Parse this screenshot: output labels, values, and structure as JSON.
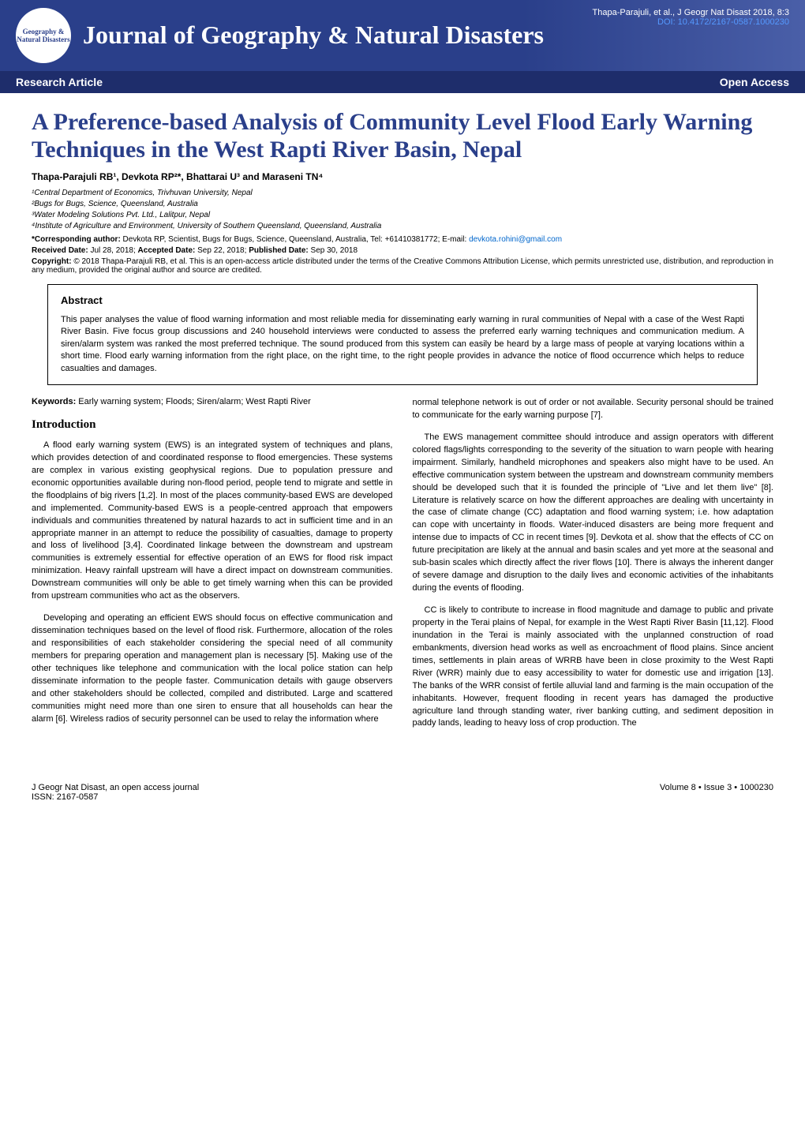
{
  "header": {
    "journal_name": "Journal of Geography & Natural Disasters",
    "citation": "Thapa-Parajuli, et al., J Geogr Nat Disast 2018, 8:3",
    "doi": "DOI: 10.4172/2167-0587.1000230",
    "issn": "ISSN: 2167-0587",
    "logo_text": "Geography & Natural Disasters"
  },
  "article_type_bar": {
    "left": "Research Article",
    "right": "Open Access"
  },
  "article": {
    "title": "A Preference-based Analysis of Community Level Flood Early Warning Techniques in the West Rapti River Basin, Nepal",
    "authors": "Thapa-Parajuli RB¹, Devkota RP²*, Bhattarai U³ and Maraseni TN⁴",
    "affiliations": [
      "¹Central Department of Economics, Trivhuvan University, Nepal",
      "²Bugs for Bugs, Science, Queensland, Australia",
      "³Water Modeling Solutions Pvt. Ltd., Lalitpur, Nepal",
      "⁴Institute of Agriculture and Environment, University of Southern Queensland, Queensland, Australia"
    ],
    "corresponding_label": "*Corresponding author:",
    "corresponding_text": " Devkota RP, Scientist, Bugs for Bugs, Science, Queensland, Australia, Tel: +61410381772; E-mail: ",
    "corresponding_email": "devkota.rohini@gmail.com",
    "dates_received_label": "Received Date:",
    "dates_received": " Jul 28, 2018; ",
    "dates_accepted_label": "Accepted Date:",
    "dates_accepted": " Sep 22, 2018; ",
    "dates_published_label": "Published Date:",
    "dates_published": " Sep 30, 2018",
    "copyright_label": "Copyright:",
    "copyright_text": " © 2018 Thapa-Parajuli RB, et al. This is an open-access article distributed under the terms of the Creative Commons Attribution License, which permits unrestricted use, distribution, and reproduction in any medium, provided the original author and source are credited."
  },
  "abstract": {
    "heading": "Abstract",
    "text": "This paper analyses the value of flood warning information and most reliable media for disseminating early warning in rural communities of Nepal with a case of the West Rapti River Basin. Five focus group discussions and 240 household interviews were conducted to assess the preferred early warning techniques and communication medium. A siren/alarm system was ranked the most preferred technique. The sound produced from this system can easily be heard by a large mass of people at varying locations within a short time. Flood early warning information from the right place, on the right time, to the right people provides in advance the notice of flood occurrence which helps to reduce casualties and damages."
  },
  "keywords": {
    "label": "Keywords:",
    "text": " Early warning system; Floods; Siren/alarm; West Rapti River"
  },
  "sections": {
    "intro_heading": "Introduction",
    "left_paras": [
      "A flood early warning system (EWS) is an integrated system of techniques and plans, which provides detection of and coordinated response to flood emergencies. These systems are complex in various existing geophysical regions. Due to population pressure and economic opportunities available during non-flood period, people tend to migrate and settle in the floodplains of big rivers [1,2]. In most of the places community-based EWS are developed and implemented. Community-based EWS is a people-centred approach that empowers individuals and communities threatened by natural hazards to act in sufficient time and in an appropriate manner in an attempt to reduce the possibility of casualties, damage to property and loss of livelihood [3,4]. Coordinated linkage between the downstream and upstream communities is extremely essential for effective operation of an EWS for flood risk impact minimization. Heavy rainfall upstream will have a direct impact on downstream communities. Downstream communities will only be able to get timely warning when this can be provided from upstream communities who act as the observers.",
      "Developing and operating an efficient EWS should focus on effective communication and dissemination techniques based on the level of flood risk. Furthermore, allocation of the roles and responsibilities of each stakeholder considering the special need of all community members for preparing operation and management plan is necessary [5]. Making use of the other techniques like telephone and communication with the local police station can help disseminate information to the people faster. Communication details with gauge observers and other stakeholders should be collected, compiled and distributed. Large and scattered communities might need more than one siren to ensure that all households can hear the alarm [6]. Wireless radios of security personnel can be used to relay the information where"
    ],
    "right_paras": [
      "normal telephone network is out of order or not available. Security personal should be trained to communicate for the early warning purpose [7].",
      "The EWS management committee should introduce and assign operators with different colored flags/lights corresponding to the severity of the situation to warn people with hearing impairment. Similarly, handheld microphones and speakers also might have to be used. An effective communication system between the upstream and downstream community members should be developed such that it is founded the principle of \"Live and let them live\" [8]. Literature is relatively scarce on how the different approaches are dealing with uncertainty in the case of climate change (CC) adaptation and flood warning system; i.e. how adaptation can cope with uncertainty in floods. Water-induced disasters are being more frequent and intense due to impacts of CC in recent times [9]. Devkota et al. show that the effects of CC on future precipitation are likely at the annual and basin scales and yet more at the seasonal and sub-basin scales which directly affect the river flows [10]. There is always the inherent danger of severe damage and disruption to the daily lives and economic activities of the inhabitants during the events of flooding.",
      "CC is likely to contribute to increase in flood magnitude and damage to public and private property in the Terai plains of Nepal, for example in the West Rapti River Basin [11,12]. Flood inundation in the Terai is mainly associated with the unplanned construction of road embankments, diversion head works as well as encroachment of flood plains. Since ancient times, settlements in plain areas of WRRB have been in close proximity to the West Rapti River (WRR) mainly due to easy accessibility to water for domestic use and irrigation [13]. The banks of the WRR consist of fertile alluvial land and farming is the main occupation of the inhabitants. However, frequent flooding in recent years has damaged the productive agriculture land through standing water, river banking cutting, and sediment deposition in paddy lands, leading to heavy loss of crop production. The"
    ]
  },
  "footer": {
    "left_line1": "J Geogr Nat Disast, an open access journal",
    "left_line2": "ISSN: 2167-0587",
    "right": "Volume 8 • Issue 3 • 1000230"
  },
  "colors": {
    "header_bg": "#2a3f8a",
    "title_color": "#2a3f8a",
    "link_color": "#0066cc",
    "doi_color": "#5599ff",
    "text_color": "#000000",
    "bg_color": "#ffffff"
  }
}
